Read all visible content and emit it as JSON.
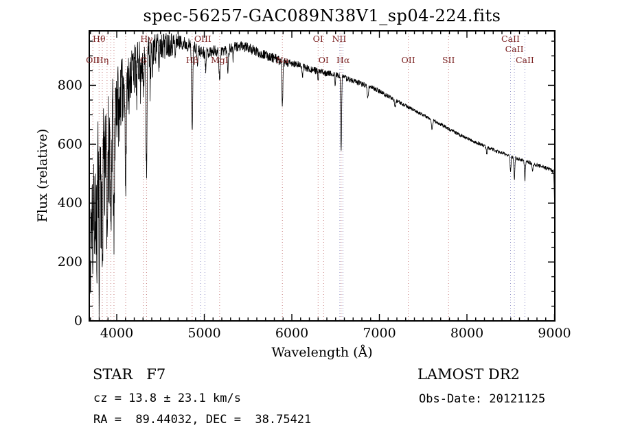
{
  "chart_data": {
    "type": "line",
    "title": "spec-56257-GAC089N38V1_sp04-224.fits",
    "xlabel": "Wavelength (Å)",
    "ylabel": "Flux (relative)",
    "xlim": [
      3686,
      9004
    ],
    "ylim": [
      0,
      985
    ],
    "xticks": [
      4000,
      5000,
      6000,
      7000,
      8000,
      9000
    ],
    "x_minor_step": 100,
    "yticks": [
      0,
      200,
      400,
      600,
      800
    ],
    "y_minor_step": 50,
    "grid": false,
    "legend": "none",
    "trace_color": "#000000",
    "label_color": "#7a2020",
    "marker_colors": {
      "red": "#c87d7d",
      "blue": "#9191c8"
    },
    "noise_seed": 11,
    "sample_step": 2.5,
    "continuum": [
      [
        3686,
        150
      ],
      [
        3692,
        300
      ],
      [
        3700,
        390
      ],
      [
        3715,
        470
      ],
      [
        3735,
        530
      ],
      [
        3760,
        570
      ],
      [
        3790,
        605
      ],
      [
        3825,
        645
      ],
      [
        3860,
        675
      ],
      [
        3895,
        700
      ],
      [
        3930,
        720
      ],
      [
        3965,
        745
      ],
      [
        4000,
        775
      ],
      [
        4050,
        805
      ],
      [
        4110,
        840
      ],
      [
        4180,
        875
      ],
      [
        4260,
        905
      ],
      [
        4350,
        928
      ],
      [
        4440,
        940
      ],
      [
        4530,
        948
      ],
      [
        4620,
        953
      ],
      [
        4700,
        950
      ],
      [
        4780,
        942
      ],
      [
        4860,
        932
      ],
      [
        4940,
        916
      ],
      [
        5020,
        910
      ],
      [
        5100,
        916
      ],
      [
        5180,
        918
      ],
      [
        5260,
        922
      ],
      [
        5340,
        930
      ],
      [
        5420,
        932
      ],
      [
        5500,
        928
      ],
      [
        5580,
        916
      ],
      [
        5660,
        906
      ],
      [
        5740,
        898
      ],
      [
        5820,
        890
      ],
      [
        5900,
        878
      ],
      [
        5980,
        874
      ],
      [
        6060,
        870
      ],
      [
        6140,
        862
      ],
      [
        6220,
        854
      ],
      [
        6300,
        848
      ],
      [
        6380,
        843
      ],
      [
        6460,
        838
      ],
      [
        6540,
        833
      ],
      [
        6620,
        824
      ],
      [
        6700,
        815
      ],
      [
        6780,
        807
      ],
      [
        6860,
        800
      ],
      [
        6940,
        790
      ],
      [
        7000,
        780
      ],
      [
        7080,
        766
      ],
      [
        7160,
        753
      ],
      [
        7240,
        740
      ],
      [
        7320,
        727
      ],
      [
        7400,
        715
      ],
      [
        7480,
        702
      ],
      [
        7560,
        690
      ],
      [
        7640,
        677
      ],
      [
        7720,
        664
      ],
      [
        7800,
        651
      ],
      [
        7880,
        638
      ],
      [
        7960,
        626
      ],
      [
        8040,
        614
      ],
      [
        8120,
        604
      ],
      [
        8200,
        594
      ],
      [
        8280,
        584
      ],
      [
        8360,
        574
      ],
      [
        8440,
        565
      ],
      [
        8520,
        557
      ],
      [
        8600,
        549
      ],
      [
        8680,
        541
      ],
      [
        8760,
        533
      ],
      [
        8840,
        525
      ],
      [
        8920,
        517
      ],
      [
        8980,
        510
      ],
      [
        9004,
        505
      ]
    ],
    "noise_envelope": [
      [
        3686,
        130
      ],
      [
        3730,
        140
      ],
      [
        3780,
        145
      ],
      [
        3830,
        140
      ],
      [
        3880,
        130
      ],
      [
        3930,
        120
      ],
      [
        3980,
        105
      ],
      [
        4040,
        85
      ],
      [
        4120,
        70
      ],
      [
        4220,
        55
      ],
      [
        4330,
        45
      ],
      [
        4450,
        36
      ],
      [
        4580,
        30
      ],
      [
        4720,
        26
      ],
      [
        4900,
        22
      ],
      [
        5100,
        20
      ],
      [
        5350,
        18
      ],
      [
        5600,
        17
      ],
      [
        5850,
        16
      ],
      [
        6100,
        13
      ],
      [
        6350,
        11
      ],
      [
        6600,
        10
      ],
      [
        6850,
        9
      ],
      [
        7100,
        7
      ],
      [
        7400,
        6
      ],
      [
        7700,
        6
      ],
      [
        8000,
        6
      ],
      [
        8300,
        6
      ],
      [
        8600,
        6
      ],
      [
        8900,
        7
      ],
      [
        9004,
        8
      ]
    ],
    "absorption_lines": [
      [
        3695,
        260,
        4
      ],
      [
        3712,
        200,
        4
      ],
      [
        3727,
        180,
        4
      ],
      [
        3750,
        380,
        5
      ],
      [
        3771,
        300,
        5
      ],
      [
        3798,
        350,
        5
      ],
      [
        3820,
        180,
        4
      ],
      [
        3835,
        450,
        5
      ],
      [
        3860,
        150,
        4
      ],
      [
        3889,
        460,
        6
      ],
      [
        3912,
        120,
        4
      ],
      [
        3933,
        500,
        6
      ],
      [
        3968,
        460,
        6
      ],
      [
        4026,
        120,
        4
      ],
      [
        4102,
        390,
        6
      ],
      [
        4144,
        100,
        4
      ],
      [
        4227,
        110,
        4
      ],
      [
        4271,
        90,
        4
      ],
      [
        4304,
        130,
        7
      ],
      [
        4340,
        390,
        6
      ],
      [
        4383,
        140,
        4
      ],
      [
        4405,
        100,
        4
      ],
      [
        4481,
        70,
        4
      ],
      [
        4668,
        60,
        4
      ],
      [
        4861,
        295,
        6
      ],
      [
        4921,
        60,
        4
      ],
      [
        5015,
        50,
        4
      ],
      [
        5175,
        90,
        8
      ],
      [
        5270,
        70,
        6
      ],
      [
        5329,
        40,
        4
      ],
      [
        5892,
        145,
        6
      ],
      [
        6122,
        35,
        4
      ],
      [
        6300,
        35,
        4
      ],
      [
        6495,
        40,
        4
      ],
      [
        6563,
        245,
        5
      ],
      [
        6867,
        45,
        7
      ],
      [
        7180,
        25,
        6
      ],
      [
        7600,
        30,
        7
      ],
      [
        8227,
        25,
        5
      ],
      [
        8498,
        55,
        5
      ],
      [
        8542,
        75,
        5
      ],
      [
        8662,
        65,
        5
      ],
      [
        8750,
        30,
        5
      ],
      [
        9003,
        115,
        5
      ]
    ],
    "line_markers": [
      {
        "wl": 3727,
        "color": "red"
      },
      {
        "wl": 3798,
        "color": "red"
      },
      {
        "wl": 3835,
        "color": "red"
      },
      {
        "wl": 3889,
        "color": "red"
      },
      {
        "wl": 3933,
        "color": "red"
      },
      {
        "wl": 3968,
        "color": "red"
      },
      {
        "wl": 4102,
        "color": "red"
      },
      {
        "wl": 4304,
        "color": "red"
      },
      {
        "wl": 4340,
        "color": "red"
      },
      {
        "wl": 4861,
        "color": "red"
      },
      {
        "wl": 4959,
        "color": "blue"
      },
      {
        "wl": 5007,
        "color": "blue"
      },
      {
        "wl": 5175,
        "color": "red"
      },
      {
        "wl": 5892,
        "color": "red"
      },
      {
        "wl": 6300,
        "color": "red"
      },
      {
        "wl": 6363,
        "color": "red"
      },
      {
        "wl": 6548,
        "color": "blue"
      },
      {
        "wl": 6563,
        "color": "red"
      },
      {
        "wl": 6583,
        "color": "blue"
      },
      {
        "wl": 7330,
        "color": "red"
      },
      {
        "wl": 7790,
        "color": "red"
      },
      {
        "wl": 8498,
        "color": "blue"
      },
      {
        "wl": 8542,
        "color": "blue"
      },
      {
        "wl": 8662,
        "color": "blue"
      }
    ],
    "line_labels": [
      {
        "text": "Hθ",
        "wl": 3798,
        "row": 1
      },
      {
        "text": "OII",
        "wl": 3727,
        "row": 2
      },
      {
        "text": "Hη",
        "wl": 3835,
        "row": 2
      },
      {
        "text": "Hγ",
        "wl": 4340,
        "row": 1
      },
      {
        "text": "G",
        "wl": 4304,
        "row": 2
      },
      {
        "text": "OIII",
        "wl": 4983,
        "row": 1
      },
      {
        "text": "Hβ",
        "wl": 4861,
        "row": 2
      },
      {
        "text": "MgI",
        "wl": 5175,
        "row": 2
      },
      {
        "text": "Na",
        "wl": 5892,
        "row": 2
      },
      {
        "text": "OI",
        "wl": 6300,
        "row": 1
      },
      {
        "text": "OI",
        "wl": 6363,
        "row": 2
      },
      {
        "text": "NII",
        "wl": 6540,
        "row": 1
      },
      {
        "text": "Hα",
        "wl": 6585,
        "row": 2
      },
      {
        "text": "OII",
        "wl": 7330,
        "row": 2
      },
      {
        "text": "SII",
        "wl": 7790,
        "row": 2
      },
      {
        "text": "CaII",
        "wl": 8498,
        "row": 1
      },
      {
        "text": "CaII",
        "wl": 8542,
        "row": 1.5
      },
      {
        "text": "CaII",
        "wl": 8662,
        "row": 2
      }
    ]
  },
  "footer": {
    "star_class": "STAR   F7",
    "survey": "LAMOST DR2",
    "cz": "cz = 13.8 ± 23.1 km/s",
    "obs_date": "Obs-Date: 20121125",
    "coords": "RA =  89.44032, DEC =  38.75421"
  }
}
